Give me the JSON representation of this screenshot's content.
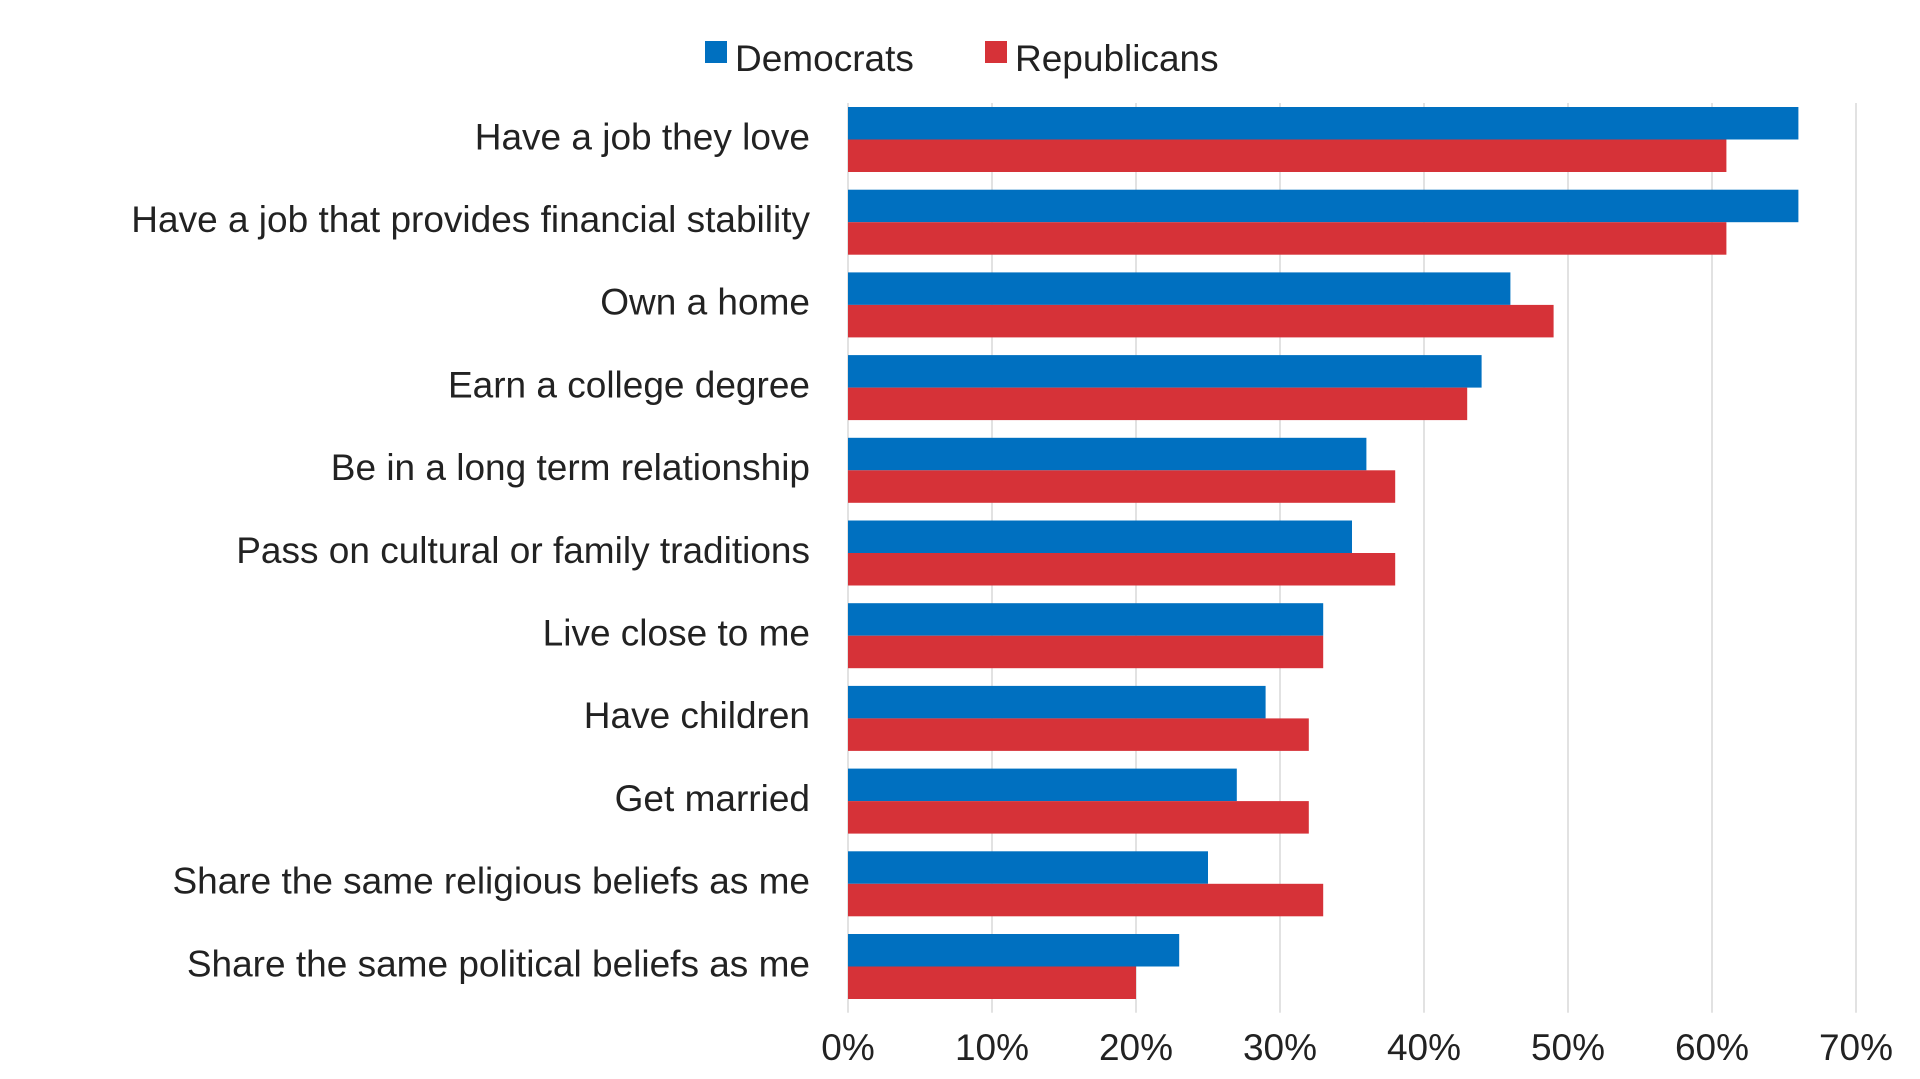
{
  "chart_data": {
    "type": "bar",
    "orientation": "horizontal",
    "categories": [
      "Have a job they love",
      "Have a job that provides financial stability",
      "Own a home",
      "Earn a college degree",
      "Be in a long term relationship",
      "Pass on cultural or family traditions",
      "Live close to me",
      "Have children",
      "Get married",
      "Share the same religious beliefs as me",
      "Share the same political beliefs as me"
    ],
    "series": [
      {
        "name": "Democrats",
        "color": "#0070c0",
        "values": [
          66,
          66,
          46,
          44,
          36,
          35,
          33,
          29,
          27,
          25,
          23
        ]
      },
      {
        "name": "Republicans",
        "color": "#d63238",
        "values": [
          61,
          61,
          49,
          43,
          38,
          38,
          33,
          32,
          32,
          33,
          20
        ]
      }
    ],
    "xlim": [
      0,
      70
    ],
    "xticks": [
      "0%",
      "10%",
      "20%",
      "30%",
      "40%",
      "50%",
      "60%",
      "70%"
    ],
    "grid": true,
    "legend_position": "top-center"
  }
}
